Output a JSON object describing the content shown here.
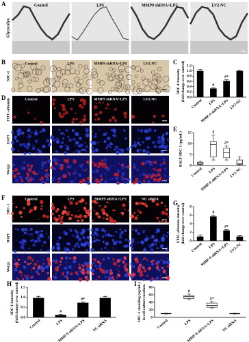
{
  "micrographs": [
    {
      "panel": "A",
      "columns": [
        "Control",
        "LPS",
        "MMP9 shRNA+LPS",
        "LV2-NC"
      ],
      "rows": [
        "Glycocalyx"
      ]
    },
    {
      "panel": "B",
      "columns": [
        "Control",
        "LPS",
        "MMP9 shRNA+LPS",
        "LV2-NC"
      ],
      "rows": [
        "SDC-1"
      ]
    },
    {
      "panel": "D",
      "columns": [
        "Control",
        "LPS",
        "MMP9 shRNA+LPS",
        "LV2-NC"
      ],
      "rows": [
        "FITC-albumin",
        "DAPI",
        "Merge"
      ]
    },
    {
      "panel": "F",
      "columns": [
        "Control",
        "LPS",
        "MMP9 siRNA+LPS",
        "NC siRNA"
      ],
      "rows": [
        "SDC-1",
        "DAPI",
        "Merge"
      ]
    }
  ],
  "chart_data": [
    {
      "type": "bar",
      "panel": "C",
      "ylabel": [
        "SDC-1 intensity",
        "(fold change over control)"
      ],
      "categories": [
        "Control",
        "LPS",
        "MMP-9 shRNA+LPS",
        "LV2-NC"
      ],
      "values": [
        1.0,
        0.33,
        0.62,
        1.0
      ],
      "errors": [
        0.05,
        0.02,
        0.04,
        0.03
      ],
      "annotations": [
        null,
        "#",
        "#*",
        null
      ],
      "color": "#000000",
      "ylim": [
        0,
        1.2
      ],
      "yticks": [
        {
          "value": 0,
          "label": "0.0"
        },
        {
          "value": 0.2,
          "label": "0.2"
        },
        {
          "value": 0.4,
          "label": "0.4"
        },
        {
          "value": 0.6,
          "label": "0.6"
        },
        {
          "value": 0.8,
          "label": "0.8"
        },
        {
          "value": 1.0,
          "label": "1.0"
        },
        {
          "value": 1.2,
          "label": "1.2"
        }
      ]
    },
    {
      "type": "box",
      "panel": "E",
      "ylabel": [
        "BALF SDC-1 (pg/mL)"
      ],
      "categories": [
        "Control",
        "LPS",
        "MMP-9 shRNA+LPS",
        "LV2-NC"
      ],
      "min": [
        0,
        2.5,
        2.5,
        0
      ],
      "q1": [
        0.5,
        4,
        3.5,
        0.5
      ],
      "median": [
        1,
        9.5,
        6,
        1
      ],
      "q3": [
        1.5,
        11,
        8,
        2.5
      ],
      "max": [
        2,
        14,
        9,
        4
      ],
      "annotations": [
        null,
        "#",
        "#*",
        null
      ],
      "ylim": [
        0,
        15
      ],
      "yticks": [
        0,
        5,
        10,
        15
      ]
    },
    {
      "type": "bar",
      "panel": "G",
      "ylabel": [
        "FITC-albumin intensity",
        "(fold change over control)"
      ],
      "categories": [
        "Control",
        "LPS",
        "MMP-9 shRNA+LPS",
        "LV2-NC"
      ],
      "values": [
        1.0,
        5.7,
        2.4,
        1.0
      ],
      "errors": [
        0.3,
        0.3,
        0.2,
        0.2
      ],
      "annotations": [
        null,
        "#",
        "#*",
        null
      ],
      "color": "#000000",
      "ylim": [
        0,
        8
      ],
      "yticks": [
        0,
        2,
        4,
        6,
        8
      ]
    },
    {
      "type": "bar",
      "panel": "H",
      "ylabel": [
        "SDC-1 intensity",
        "(fold change over control)"
      ],
      "categories": [
        "Control",
        "LPS",
        "MMP-9 siRNA+LPS",
        "NC siRNA"
      ],
      "values": [
        0.97,
        0.12,
        0.73,
        0.97
      ],
      "errors": [
        0.08,
        0.03,
        0.04,
        0.08
      ],
      "annotations": [
        null,
        "#",
        "#*",
        null
      ],
      "color": "#000000",
      "ylim": [
        0,
        1.5
      ],
      "yticks": [
        {
          "value": 0,
          "label": "0.0"
        },
        {
          "value": 0.5,
          "label": "0.5"
        },
        {
          "value": 1.0,
          "label": "1.0"
        },
        {
          "value": 1.5,
          "label": "1.5"
        }
      ]
    },
    {
      "type": "box",
      "panel": "I",
      "ylabel": [
        "SDC-1 shedding (ng/mL)",
        "in cell culture medium"
      ],
      "categories": [
        "Control",
        "LPS",
        "MMP-9 siRNA+LPS",
        "NC siRNA"
      ],
      "min": [
        9,
        47,
        25,
        9
      ],
      "q1": [
        9.5,
        50,
        27,
        9.5
      ],
      "median": [
        10,
        55,
        32,
        10
      ],
      "q3": [
        10.5,
        58,
        38,
        10.5
      ],
      "max": [
        11,
        62,
        42,
        11
      ],
      "annotations": [
        null,
        "#",
        "#*",
        null
      ],
      "ylim": [
        0,
        80
      ],
      "yticks": [
        0,
        20,
        40,
        60,
        80
      ]
    }
  ]
}
